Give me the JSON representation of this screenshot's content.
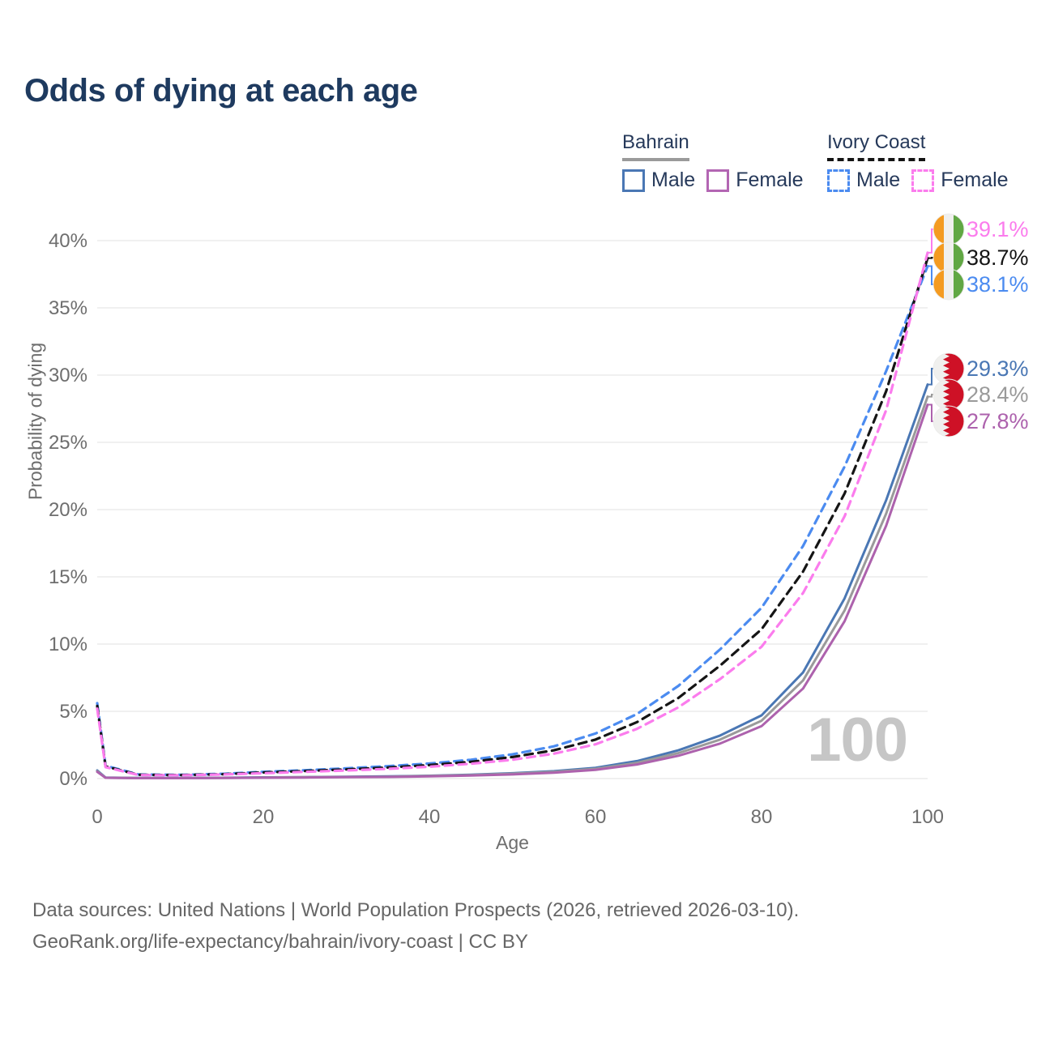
{
  "header": {
    "title": "Odds of dying at each age"
  },
  "legend": {
    "groups": [
      {
        "country": "Bahrain",
        "underline_style": "solid",
        "underline_color": "#9a9a9a",
        "items": [
          {
            "label": "Male",
            "color": "#4a77b4",
            "dash": false
          },
          {
            "label": "Female",
            "color": "#b366b3",
            "dash": false
          }
        ]
      },
      {
        "country": "Ivory Coast",
        "underline_style": "dashed",
        "underline_color": "#141414",
        "items": [
          {
            "label": "Male",
            "color": "#4b8bf0",
            "dash": true
          },
          {
            "label": "Female",
            "color": "#fb7ced",
            "dash": true
          }
        ]
      }
    ]
  },
  "chart_data": {
    "type": "line",
    "title": "Odds of dying at each age",
    "xlabel": "Age",
    "ylabel": "Probability of dying",
    "xlim": [
      0,
      100
    ],
    "ylim": [
      0,
      40
    ],
    "grid": "horizontal",
    "watermark": "100",
    "x_ticks": [
      0,
      20,
      40,
      60,
      80,
      100
    ],
    "y_ticks": [
      {
        "label": "0%",
        "value": 0
      },
      {
        "label": "5%",
        "value": 5
      },
      {
        "label": "10%",
        "value": 10
      },
      {
        "label": "15%",
        "value": 15
      },
      {
        "label": "20%",
        "value": 20
      },
      {
        "label": "25%",
        "value": 25
      },
      {
        "label": "30%",
        "value": 30
      },
      {
        "label": "35%",
        "value": 35
      },
      {
        "label": "40%",
        "value": 40
      }
    ],
    "ages": [
      0,
      1,
      5,
      10,
      15,
      20,
      25,
      30,
      35,
      40,
      45,
      50,
      55,
      60,
      65,
      70,
      75,
      80,
      85,
      90,
      95,
      100
    ],
    "series": [
      {
        "id": "ivory-coast-male",
        "name": "Ivory Coast Male",
        "flag": "ivory-coast",
        "dashed": true,
        "color": "#4b8bf0",
        "end_label": "38.1%",
        "values": [
          5.6,
          0.95,
          0.3,
          0.28,
          0.35,
          0.5,
          0.62,
          0.76,
          0.92,
          1.12,
          1.4,
          1.8,
          2.4,
          3.35,
          4.8,
          6.9,
          9.6,
          12.7,
          17.3,
          23.2,
          30.3,
          38.1
        ]
      },
      {
        "id": "ivory-coast-both",
        "name": "Ivory Coast Both sexes",
        "flag": "ivory-coast",
        "dashed": true,
        "color": "#151515",
        "end_label": "38.7%",
        "values": [
          5.4,
          0.9,
          0.28,
          0.26,
          0.32,
          0.45,
          0.56,
          0.68,
          0.82,
          1.0,
          1.25,
          1.6,
          2.1,
          2.9,
          4.2,
          6.0,
          8.4,
          11.1,
          15.4,
          21.2,
          28.8,
          38.7
        ]
      },
      {
        "id": "ivory-coast-female",
        "name": "Ivory Coast Female",
        "flag": "ivory-coast",
        "dashed": true,
        "color": "#fb7ced",
        "end_label": "39.1%",
        "values": [
          5.2,
          0.85,
          0.26,
          0.24,
          0.3,
          0.4,
          0.5,
          0.6,
          0.72,
          0.88,
          1.1,
          1.4,
          1.85,
          2.55,
          3.7,
          5.3,
          7.4,
          9.8,
          13.8,
          19.5,
          27.4,
          39.1
        ]
      },
      {
        "id": "bahrain-male",
        "name": "Bahrain Male",
        "flag": "bahrain",
        "dashed": false,
        "color": "#4a77b4",
        "end_label": "29.3%",
        "values": [
          0.6,
          0.07,
          0.04,
          0.04,
          0.06,
          0.09,
          0.11,
          0.13,
          0.16,
          0.21,
          0.29,
          0.4,
          0.55,
          0.8,
          1.3,
          2.1,
          3.2,
          4.7,
          7.9,
          13.4,
          20.7,
          29.3
        ]
      },
      {
        "id": "bahrain-both",
        "name": "Bahrain Both sexes",
        "flag": "bahrain",
        "dashed": false,
        "color": "#9a9a9a",
        "end_label": "28.4%",
        "values": [
          0.55,
          0.06,
          0.035,
          0.035,
          0.05,
          0.08,
          0.1,
          0.12,
          0.14,
          0.19,
          0.26,
          0.36,
          0.5,
          0.72,
          1.17,
          1.9,
          2.9,
          4.3,
          7.3,
          12.5,
          19.7,
          28.4
        ]
      },
      {
        "id": "bahrain-female",
        "name": "Bahrain Female",
        "flag": "bahrain",
        "dashed": false,
        "color": "#ad62ad",
        "end_label": "27.8%",
        "values": [
          0.5,
          0.06,
          0.03,
          0.03,
          0.04,
          0.06,
          0.08,
          0.1,
          0.12,
          0.16,
          0.22,
          0.31,
          0.44,
          0.65,
          1.05,
          1.7,
          2.6,
          3.9,
          6.7,
          11.7,
          18.8,
          27.8
        ]
      }
    ]
  },
  "colors": {
    "grid": "#e8e8e8",
    "axis_text": "#6e6e6e",
    "flag_red": "#ce1126",
    "flag_white": "#f0f0ee",
    "flag_orange": "#f49b21",
    "flag_green": "#61a744"
  },
  "footer": {
    "line1": "Data sources: United Nations | World Population Prospects (2026, retrieved 2026-03-10).",
    "line2": "GeoRank.org/life-expectancy/bahrain/ivory-coast | CC BY"
  }
}
